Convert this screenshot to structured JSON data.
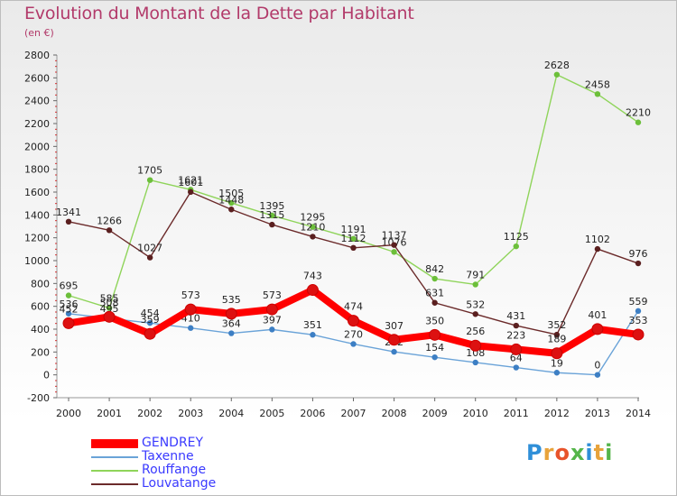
{
  "title": "Evolution du Montant de la Dette par Habitant",
  "unit": "(en €)",
  "brand": [
    "P",
    "r",
    "o",
    "x",
    "i",
    "t",
    "i"
  ],
  "brand_colors": [
    "#2f8fd8",
    "#e8a33b",
    "#e8532a",
    "#55b54a",
    "#2f8fd8",
    "#e8a33b",
    "#55b54a"
  ],
  "chart_data": {
    "type": "line",
    "x": [
      2000,
      2001,
      2002,
      2003,
      2004,
      2005,
      2006,
      2007,
      2008,
      2009,
      2010,
      2011,
      2012,
      2013,
      2014
    ],
    "ylim": [
      -200,
      2800
    ],
    "yticks": [
      -200,
      0,
      200,
      400,
      600,
      800,
      1000,
      1200,
      1400,
      1600,
      1800,
      2000,
      2200,
      2400,
      2600,
      2800
    ],
    "grid": false,
    "legend": "bottom-left",
    "series": [
      {
        "name": "Rouffange",
        "color": "#8fd45a",
        "marker": "#6cbf3a",
        "values": [
          695,
          585,
          1705,
          1621,
          1505,
          1395,
          1295,
          1191,
          1076,
          842,
          791,
          1125,
          2628,
          2458,
          2210
        ]
      },
      {
        "name": "Louvatange",
        "color": "#6b2a2a",
        "marker": "#5a1f1f",
        "values": [
          1341,
          1266,
          1027,
          1601,
          1448,
          1315,
          1210,
          1112,
          1137,
          631,
          532,
          431,
          352,
          1102,
          976
        ]
      },
      {
        "name": "Taxenne",
        "color": "#6aa3d8",
        "marker": "#3d7fc4",
        "values": [
          536,
          495,
          454,
          410,
          364,
          397,
          351,
          270,
          202,
          154,
          108,
          64,
          19,
          0,
          559
        ]
      },
      {
        "name": "GENDREY",
        "color": "#ff0000",
        "marker": "#dd1111",
        "values": [
          452,
          508,
          359,
          573,
          535,
          573,
          743,
          474,
          307,
          350,
          256,
          223,
          189,
          401,
          353
        ]
      }
    ],
    "legend_order": [
      "GENDREY",
      "Taxenne",
      "Rouffange",
      "Louvatange"
    ]
  }
}
